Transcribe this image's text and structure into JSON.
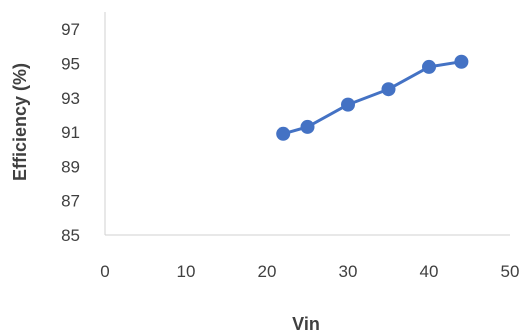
{
  "chart_data": {
    "type": "scatter",
    "mode": "lines+markers",
    "xlabel": "Vin",
    "ylabel": "Efficiency (%)",
    "xlim": [
      0,
      50
    ],
    "ylim": [
      85,
      98
    ],
    "x_ticks": [
      0,
      10,
      20,
      30,
      40,
      50
    ],
    "y_ticks": [
      85,
      87,
      89,
      91,
      93,
      95,
      97
    ],
    "grid": false,
    "series": [
      {
        "x": [
          22,
          25,
          30,
          35,
          40,
          44
        ],
        "y": [
          90.9,
          91.3,
          92.6,
          93.5,
          94.8,
          95.1
        ],
        "color": "#4472C4"
      }
    ]
  }
}
